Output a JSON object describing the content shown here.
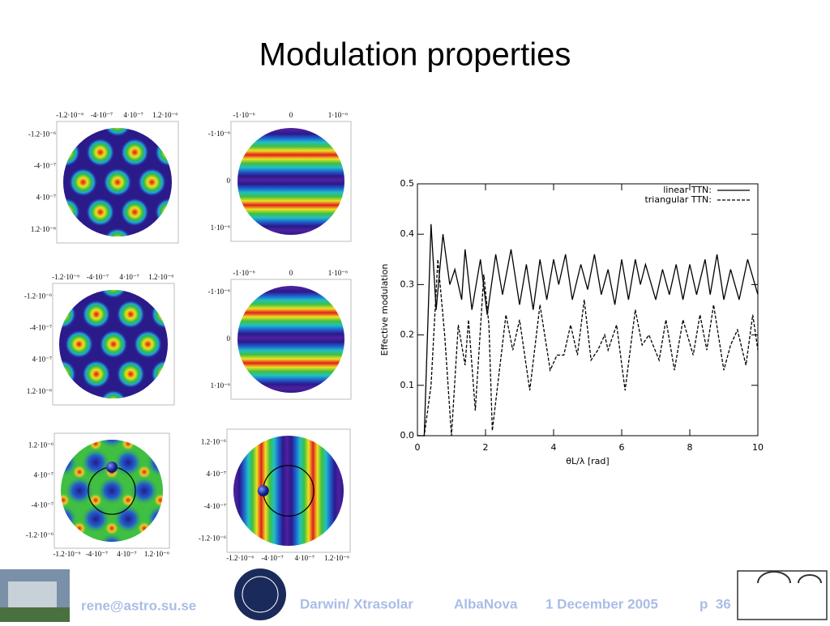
{
  "title": "Modulation properties",
  "panels": [
    {
      "xticks": [
        "-1.2·10⁻⁶",
        "-4·10⁻⁷",
        "4·10⁻⁷",
        "1.2·10⁻⁶"
      ],
      "yticks": [
        "-1.2·10⁻⁶",
        "-4·10⁻⁷",
        "4·10⁻⁷",
        "1.2·10⁻⁶"
      ]
    },
    {
      "xticks": [
        "-1·10⁻⁶",
        "0",
        "1·10⁻⁶"
      ],
      "yticks": [
        "-1·10⁻⁶",
        "0",
        "1·10⁻⁶"
      ]
    },
    {
      "xticks": [
        "-1.2·10⁻⁶",
        "-4·10⁻⁷",
        "4·10⁻⁷",
        "1.2·10⁻⁶"
      ],
      "yticks": [
        "-1.2·10⁻⁶",
        "-4·10⁻⁷",
        "4·10⁻⁷",
        "1.2·10⁻⁶"
      ]
    },
    {
      "xticks": [
        "-1·10⁻⁶",
        "0",
        "1·10⁻⁶"
      ],
      "yticks": [
        "-1·10⁻⁶",
        "0",
        "1·10⁻⁶"
      ]
    },
    {
      "xticks": [
        "-1.2·10⁻⁶",
        "-4·10⁻⁷",
        "4·10⁻⁷",
        "1.2·10⁻⁶"
      ],
      "yticks": [
        "1.2·10⁻⁶",
        "4·10⁻⁷",
        "-4·10⁻⁷",
        "-1.2·10⁻⁶"
      ]
    },
    {
      "xticks": [
        "-1.2·10⁻⁶",
        "-4·10⁻⁷",
        "4·10⁻⁷",
        "1.2·10⁻⁶"
      ],
      "yticks": [
        "1.2·10⁻⁶",
        "4·10⁻⁷",
        "-4·10⁻⁷",
        "-1.2·10⁻⁶"
      ]
    }
  ],
  "chart_data": {
    "type": "line",
    "xlabel": "θL/λ [rad]",
    "ylabel": "Effective modulation",
    "xlim": [
      0,
      10
    ],
    "ylim": [
      0,
      0.5
    ],
    "xticks": [
      0,
      2,
      4,
      6,
      8,
      10
    ],
    "yticks": [
      {
        "value": 0,
        "label": "0.0"
      },
      0.1,
      0.2,
      0.3,
      0.4,
      0.5
    ],
    "series": [
      {
        "name": "linear TTN:",
        "color": "#000000",
        "dash": false,
        "x": [
          0,
          0.2,
          0.4,
          0.55,
          0.75,
          0.95,
          1.1,
          1.3,
          1.4,
          1.6,
          1.85,
          2.05,
          2.3,
          2.5,
          2.75,
          3.0,
          3.2,
          3.4,
          3.6,
          3.8,
          4.0,
          4.15,
          4.35,
          4.55,
          4.8,
          5.0,
          5.2,
          5.4,
          5.6,
          5.8,
          6.0,
          6.2,
          6.4,
          6.55,
          6.7,
          7.0,
          7.2,
          7.4,
          7.6,
          7.8,
          8.0,
          8.2,
          8.45,
          8.6,
          8.8,
          9.0,
          9.2,
          9.45,
          9.7,
          10
        ],
        "values": [
          0,
          0,
          0.42,
          0.25,
          0.4,
          0.3,
          0.33,
          0.27,
          0.37,
          0.25,
          0.35,
          0.24,
          0.36,
          0.28,
          0.37,
          0.26,
          0.34,
          0.25,
          0.35,
          0.27,
          0.35,
          0.3,
          0.36,
          0.27,
          0.34,
          0.29,
          0.36,
          0.28,
          0.33,
          0.26,
          0.35,
          0.27,
          0.35,
          0.3,
          0.34,
          0.27,
          0.33,
          0.28,
          0.34,
          0.27,
          0.34,
          0.28,
          0.35,
          0.28,
          0.36,
          0.27,
          0.33,
          0.27,
          0.35,
          0.28
        ]
      },
      {
        "name": "triangular TTN:",
        "color": "#000000",
        "dash": true,
        "x": [
          0,
          0.2,
          0.4,
          0.6,
          0.8,
          1.0,
          1.2,
          1.4,
          1.5,
          1.7,
          1.95,
          2.1,
          2.2,
          2.6,
          2.8,
          3.0,
          3.3,
          3.6,
          3.9,
          4.1,
          4.3,
          4.5,
          4.7,
          4.9,
          5.1,
          5.3,
          5.5,
          5.6,
          5.85,
          6.1,
          6.4,
          6.6,
          6.8,
          7.1,
          7.3,
          7.55,
          7.8,
          8.1,
          8.3,
          8.5,
          8.7,
          9.0,
          9.2,
          9.4,
          9.65,
          9.85,
          10
        ],
        "values": [
          0,
          0,
          0.1,
          0.35,
          0.2,
          0,
          0.22,
          0.14,
          0.23,
          0.05,
          0.32,
          0.22,
          0.01,
          0.24,
          0.17,
          0.23,
          0.09,
          0.26,
          0.13,
          0.16,
          0.16,
          0.22,
          0.16,
          0.27,
          0.15,
          0.17,
          0.2,
          0.17,
          0.22,
          0.09,
          0.25,
          0.18,
          0.2,
          0.15,
          0.23,
          0.13,
          0.23,
          0.16,
          0.24,
          0.17,
          0.26,
          0.13,
          0.18,
          0.21,
          0.14,
          0.24,
          0.17
        ]
      }
    ]
  },
  "footer": {
    "email": "rene@astro.su.se",
    "project": "Darwin/ Xtrasolar",
    "place": "AlbaNova",
    "date": "1 December 2005",
    "page": "p  36"
  }
}
